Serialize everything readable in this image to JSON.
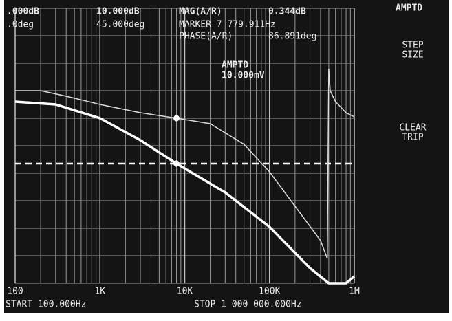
{
  "chart_data": {
    "type": "line",
    "log_x": true,
    "xlim": [
      100,
      1000000
    ],
    "xticks": [
      {
        "value": 100,
        "label": "100"
      },
      {
        "value": 1000,
        "label": "1K"
      },
      {
        "value": 10000,
        "label": "10K"
      },
      {
        "value": 100000,
        "label": "100K"
      },
      {
        "value": 1000000,
        "label": "1M"
      }
    ],
    "ylim": [
      0,
      10
    ],
    "series": [
      {
        "color": "#dcdcdc",
        "width": 1.5,
        "x": [
          100,
          200,
          400,
          1000,
          3000,
          8000,
          20000,
          50000,
          100000,
          200000,
          400000,
          480000,
          500000,
          520000,
          600000,
          800000,
          1000000
        ],
        "values": [
          7.0,
          7.0,
          6.8,
          6.5,
          6.2,
          6.0,
          5.8,
          5.05,
          4.05,
          2.8,
          1.55,
          0.9,
          7.8,
          7.0,
          6.6,
          6.2,
          6.05
        ]
      },
      {
        "color": "#ffffff",
        "width": 3.5,
        "x": [
          100,
          300,
          1000,
          3000,
          8000,
          30000,
          100000,
          300000,
          500000,
          800000,
          1000000
        ],
        "values": [
          6.6,
          6.5,
          6.0,
          5.2,
          4.35,
          3.3,
          2.05,
          0.55,
          0,
          0,
          0.25
        ]
      }
    ],
    "markers": {
      "x": [
        8000,
        8000
      ],
      "values": [
        6.0,
        4.35
      ]
    },
    "reference_line": 4.35,
    "annotation": [
      "AMPTD",
      "10.000mV"
    ],
    "start_label": "START 100.000Hz",
    "stop_label": "STOP 1 000 000.000Hz"
  },
  "screen": {
    "header": [
      ".000dB",
      "10.000dB",
      "MAG(A/R)",
      "0.344dB",
      ".0deg",
      "45.000deg",
      "MARKER 7 779.911Hz",
      "PHASE(A/R)",
      "86.891deg"
    ],
    "softkeys": [
      "AMPTD",
      "STEP",
      "SIZE",
      "CLEAR",
      "TRIP"
    ]
  }
}
